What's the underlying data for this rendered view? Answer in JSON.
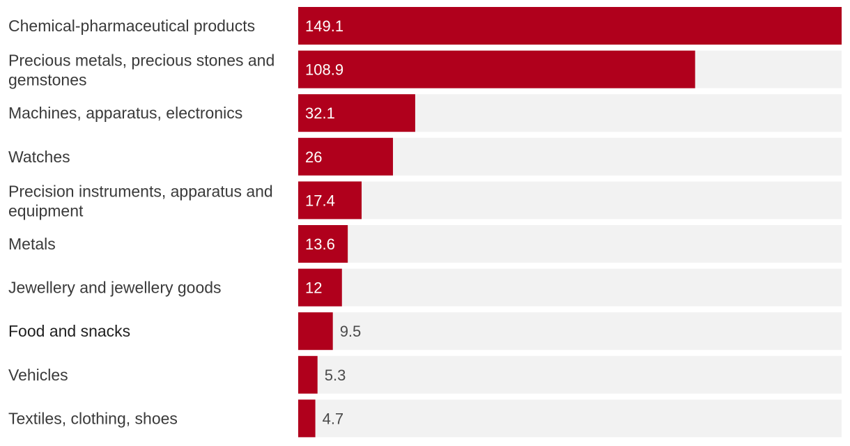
{
  "chart_data": {
    "type": "bar",
    "orientation": "horizontal",
    "title": "",
    "xlabel": "",
    "ylabel": "",
    "xlim": [
      0,
      149.1
    ],
    "grid": false,
    "legend": "none",
    "categories": [
      "Chemical-pharmaceutical products",
      "Precious metals, precious stones and gemstones",
      "Machines, apparatus, electronics",
      "Watches",
      "Precision instruments, apparatus and equipment",
      "Metals",
      "Jewellery and jewellery goods",
      "Food and snacks",
      "Vehicles",
      "Textiles, clothing, shoes"
    ],
    "values": [
      149.1,
      108.9,
      32.1,
      26,
      17.4,
      13.6,
      12,
      9.5,
      5.3,
      4.7
    ],
    "value_labels": [
      "149.1",
      "108.9",
      "32.1",
      "26",
      "17.4",
      "13.6",
      "12",
      "9.5",
      "5.3",
      "4.7"
    ]
  },
  "colors": {
    "bar": "#b0001c",
    "track": "#f2f2f2",
    "label_inside": "#ffffff",
    "label_outside": "#4a4a4a",
    "category_text": "#3a3a3a"
  }
}
